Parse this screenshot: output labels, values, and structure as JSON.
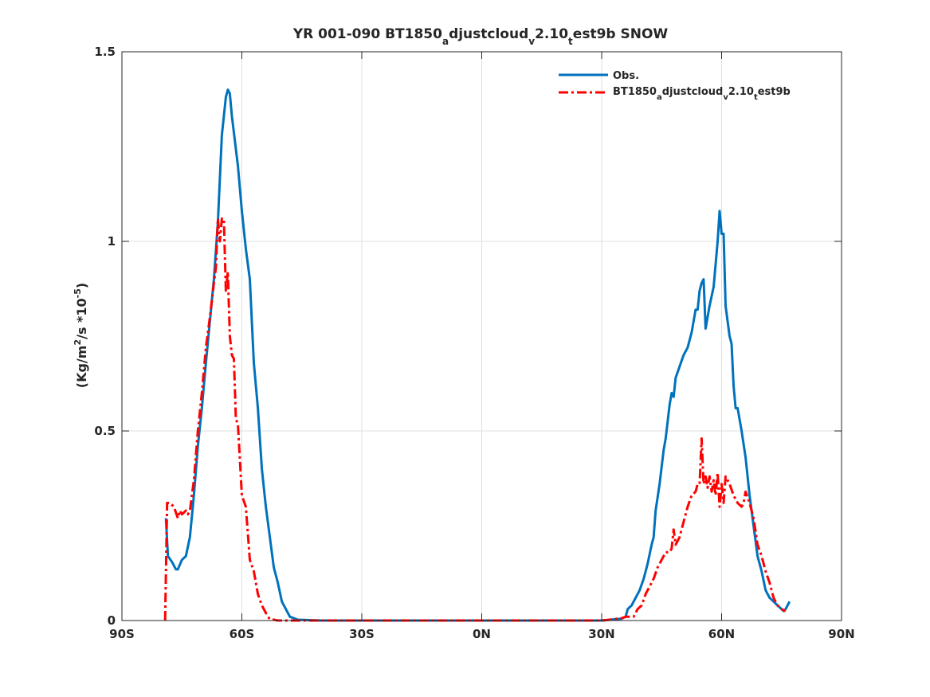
{
  "chart_data": {
    "type": "line",
    "title": {
      "p1": "YR 001-090 BT1850",
      "s1": "a",
      "p2": "djustcloud",
      "s2": "v",
      "p3": "2.10",
      "s3": "t",
      "p4": "est9b SNOW"
    },
    "ylabel": {
      "p1": "(Kg/m",
      "sup1": "2",
      "p2": "/s *10",
      "sup2": "-5",
      "p3": ")"
    },
    "xlim": [
      -90,
      90
    ],
    "ylim": [
      0,
      1.5
    ],
    "grid": true,
    "legend_position": "top-right",
    "xticks": [
      {
        "v": -90,
        "label": "90S"
      },
      {
        "v": -60,
        "label": "60S"
      },
      {
        "v": -30,
        "label": "30S"
      },
      {
        "v": 0,
        "label": "0N"
      },
      {
        "v": 30,
        "label": "30N"
      },
      {
        "v": 60,
        "label": "60N"
      },
      {
        "v": 90,
        "label": "90N"
      }
    ],
    "yticks": [
      {
        "v": 0,
        "label": "0"
      },
      {
        "v": 0.5,
        "label": "0.5"
      },
      {
        "v": 1,
        "label": "1"
      },
      {
        "v": 1.5,
        "label": "1.5"
      }
    ],
    "series": [
      {
        "name": "Obs.",
        "color": "#0072bd",
        "style": "solid",
        "points": [
          [
            -79,
            0.27
          ],
          [
            -78.5,
            0.17
          ],
          [
            -77.5,
            0.155
          ],
          [
            -76.5,
            0.135
          ],
          [
            -76,
            0.135
          ],
          [
            -75,
            0.16
          ],
          [
            -74,
            0.17
          ],
          [
            -73,
            0.22
          ],
          [
            -72,
            0.33
          ],
          [
            -71,
            0.46
          ],
          [
            -70,
            0.56
          ],
          [
            -69,
            0.68
          ],
          [
            -68,
            0.79
          ],
          [
            -67,
            0.9
          ],
          [
            -66,
            1.05
          ],
          [
            -65,
            1.28
          ],
          [
            -64,
            1.38
          ],
          [
            -63.5,
            1.4
          ],
          [
            -63,
            1.39
          ],
          [
            -62.5,
            1.33
          ],
          [
            -61,
            1.2
          ],
          [
            -60,
            1.08
          ],
          [
            -59,
            0.98
          ],
          [
            -58,
            0.9
          ],
          [
            -57,
            0.68
          ],
          [
            -56,
            0.56
          ],
          [
            -55,
            0.4
          ],
          [
            -54,
            0.3
          ],
          [
            -53,
            0.22
          ],
          [
            -52,
            0.14
          ],
          [
            -51,
            0.1
          ],
          [
            -50,
            0.05
          ],
          [
            -49,
            0.03
          ],
          [
            -48,
            0.01
          ],
          [
            -46,
            0.002
          ],
          [
            -40,
            0.0
          ],
          [
            0,
            0.0
          ],
          [
            30,
            0.0
          ],
          [
            35,
            0.005
          ],
          [
            36,
            0.01
          ],
          [
            36.5,
            0.03
          ],
          [
            37.5,
            0.04
          ],
          [
            38.5,
            0.06
          ],
          [
            39.5,
            0.08
          ],
          [
            40.5,
            0.11
          ],
          [
            41.5,
            0.15
          ],
          [
            42.5,
            0.2
          ],
          [
            43,
            0.22
          ],
          [
            43.5,
            0.29
          ],
          [
            44.5,
            0.36
          ],
          [
            45.5,
            0.45
          ],
          [
            46,
            0.48
          ],
          [
            47,
            0.57
          ],
          [
            47.5,
            0.6
          ],
          [
            48,
            0.59
          ],
          [
            48.5,
            0.64
          ],
          [
            49.5,
            0.67
          ],
          [
            50.5,
            0.7
          ],
          [
            51.5,
            0.72
          ],
          [
            52.5,
            0.76
          ],
          [
            53,
            0.79
          ],
          [
            53.5,
            0.82
          ],
          [
            54,
            0.82
          ],
          [
            54.5,
            0.87
          ],
          [
            55,
            0.89
          ],
          [
            55.5,
            0.9
          ],
          [
            56,
            0.77
          ],
          [
            57,
            0.83
          ],
          [
            58,
            0.88
          ],
          [
            59,
            1.0
          ],
          [
            59.5,
            1.08
          ],
          [
            60,
            1.02
          ],
          [
            60.5,
            1.02
          ],
          [
            61,
            0.83
          ],
          [
            62,
            0.75
          ],
          [
            62.5,
            0.73
          ],
          [
            63,
            0.62
          ],
          [
            63.5,
            0.56
          ],
          [
            64,
            0.56
          ],
          [
            65,
            0.5
          ],
          [
            66,
            0.43
          ],
          [
            67,
            0.33
          ],
          [
            68,
            0.25
          ],
          [
            69,
            0.17
          ],
          [
            70,
            0.13
          ],
          [
            71,
            0.08
          ],
          [
            72,
            0.06
          ],
          [
            73,
            0.05
          ],
          [
            74,
            0.04
          ],
          [
            75,
            0.03
          ],
          [
            75.5,
            0.025
          ],
          [
            76,
            0.03
          ],
          [
            76.5,
            0.04
          ],
          [
            77,
            0.05
          ]
        ]
      },
      {
        "name": {
          "p1": "BT1850",
          "s1": "a",
          "p2": "djustcloud",
          "s2": "v",
          "p3": "2.10",
          "s3": "t",
          "p4": "est9b"
        },
        "color": "#ff0000",
        "style": "dashdot",
        "points": [
          [
            -79.2,
            0.0
          ],
          [
            -78.7,
            0.31
          ],
          [
            -78,
            0.31
          ],
          [
            -77,
            0.3
          ],
          [
            -76,
            0.27
          ],
          [
            -75.5,
            0.29
          ],
          [
            -75,
            0.28
          ],
          [
            -74,
            0.29
          ],
          [
            -73.5,
            0.28
          ],
          [
            -73,
            0.29
          ],
          [
            -72.5,
            0.33
          ],
          [
            -72,
            0.37
          ],
          [
            -71,
            0.5
          ],
          [
            -70,
            0.6
          ],
          [
            -69,
            0.72
          ],
          [
            -68,
            0.8
          ],
          [
            -67,
            0.89
          ],
          [
            -66.5,
            0.93
          ],
          [
            -66,
            1.06
          ],
          [
            -65.5,
            1.0
          ],
          [
            -65,
            1.06
          ],
          [
            -64.5,
            1.06
          ],
          [
            -64,
            0.87
          ],
          [
            -63.5,
            0.92
          ],
          [
            -63,
            0.75
          ],
          [
            -62.5,
            0.7
          ],
          [
            -62,
            0.69
          ],
          [
            -61.5,
            0.53
          ],
          [
            -61,
            0.52
          ],
          [
            -60,
            0.33
          ],
          [
            -59,
            0.3
          ],
          [
            -58,
            0.16
          ],
          [
            -57,
            0.13
          ],
          [
            -56,
            0.07
          ],
          [
            -55,
            0.04
          ],
          [
            -54,
            0.02
          ],
          [
            -53,
            0.003
          ],
          [
            -52,
            0.002
          ],
          [
            -51,
            0.0
          ],
          [
            0,
            0.0
          ],
          [
            30,
            0.0
          ],
          [
            32,
            0.002
          ],
          [
            34,
            0.005
          ],
          [
            35,
            0.006
          ],
          [
            36,
            0.01
          ],
          [
            38,
            0.01
          ],
          [
            39,
            0.03
          ],
          [
            40,
            0.04
          ],
          [
            41,
            0.07
          ],
          [
            42,
            0.09
          ],
          [
            43,
            0.11
          ],
          [
            44,
            0.14
          ],
          [
            45,
            0.16
          ],
          [
            46,
            0.18
          ],
          [
            47,
            0.18
          ],
          [
            47.5,
            0.19
          ],
          [
            48,
            0.24
          ],
          [
            48.5,
            0.2
          ],
          [
            49.5,
            0.22
          ],
          [
            50.5,
            0.26
          ],
          [
            51.5,
            0.3
          ],
          [
            52.5,
            0.33
          ],
          [
            53.5,
            0.34
          ],
          [
            54,
            0.36
          ],
          [
            54.5,
            0.36
          ],
          [
            55,
            0.48
          ],
          [
            55.5,
            0.36
          ],
          [
            56,
            0.38
          ],
          [
            56.5,
            0.35
          ],
          [
            57,
            0.38
          ],
          [
            57.5,
            0.34
          ],
          [
            58,
            0.37
          ],
          [
            58.5,
            0.33
          ],
          [
            59,
            0.39
          ],
          [
            59.5,
            0.3
          ],
          [
            60,
            0.36
          ],
          [
            60.5,
            0.31
          ],
          [
            61,
            0.38
          ],
          [
            62,
            0.36
          ],
          [
            63,
            0.33
          ],
          [
            63.5,
            0.32
          ],
          [
            64,
            0.31
          ],
          [
            65,
            0.3
          ],
          [
            65.5,
            0.31
          ],
          [
            66,
            0.34
          ],
          [
            67,
            0.31
          ],
          [
            68,
            0.27
          ],
          [
            69,
            0.2
          ],
          [
            70,
            0.17
          ],
          [
            71,
            0.13
          ],
          [
            72,
            0.1
          ],
          [
            73,
            0.06
          ],
          [
            74,
            0.04
          ],
          [
            75,
            0.03
          ],
          [
            76,
            0.025
          ]
        ]
      }
    ]
  }
}
